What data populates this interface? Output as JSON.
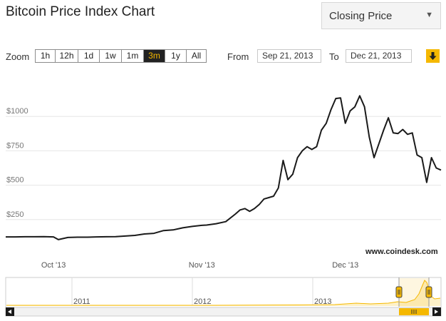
{
  "page": {
    "title": "Bitcoin Price Index Chart",
    "dropdown": {
      "selected": "Closing Price"
    },
    "zoom": {
      "label": "Zoom",
      "buttons": [
        "1h",
        "12h",
        "1d",
        "1w",
        "1m",
        "3m",
        "1y",
        "All"
      ],
      "active": "3m"
    },
    "range": {
      "from_label": "From",
      "from_value": "Sep 21, 2013",
      "to_label": "To",
      "to_value": "Dec 21, 2013"
    },
    "watermark": "www.coindesk.com"
  },
  "colors": {
    "accent": "#f5b800",
    "line": "#1a1a1a",
    "navigator_line": "#f5b800"
  },
  "chart_data": {
    "type": "line",
    "title": "",
    "xlabel": "",
    "ylabel": "",
    "y_ticks": [
      250,
      500,
      750,
      1000
    ],
    "y_tick_labels": [
      "$250",
      "$500",
      "$750",
      "$1000"
    ],
    "ylim": [
      0,
      1250
    ],
    "xlim": [
      "2013-09-21",
      "2013-12-21"
    ],
    "x_ticks": [
      {
        "date": "2013-10-01",
        "label": "Oct '13"
      },
      {
        "date": "2013-11-01",
        "label": "Nov '13"
      },
      {
        "date": "2013-12-01",
        "label": "Dec '13"
      }
    ],
    "grid": "horizontal",
    "series": [
      {
        "points": [
          [
            "2013-09-21",
            124
          ],
          [
            "2013-09-23",
            124
          ],
          [
            "2013-09-25",
            125
          ],
          [
            "2013-09-27",
            125
          ],
          [
            "2013-09-29",
            126
          ],
          [
            "2013-10-01",
            124
          ],
          [
            "2013-10-02",
            104
          ],
          [
            "2013-10-04",
            120
          ],
          [
            "2013-10-06",
            122
          ],
          [
            "2013-10-08",
            122
          ],
          [
            "2013-10-10",
            124
          ],
          [
            "2013-10-12",
            125
          ],
          [
            "2013-10-14",
            126
          ],
          [
            "2013-10-16",
            130
          ],
          [
            "2013-10-18",
            135
          ],
          [
            "2013-10-20",
            145
          ],
          [
            "2013-10-22",
            150
          ],
          [
            "2013-10-24",
            170
          ],
          [
            "2013-10-26",
            175
          ],
          [
            "2013-10-28",
            190
          ],
          [
            "2013-10-30",
            200
          ],
          [
            "2013-11-01",
            208
          ],
          [
            "2013-11-02",
            210
          ],
          [
            "2013-11-04",
            220
          ],
          [
            "2013-11-06",
            235
          ],
          [
            "2013-11-08",
            290
          ],
          [
            "2013-11-09",
            320
          ],
          [
            "2013-11-10",
            330
          ],
          [
            "2013-11-11",
            310
          ],
          [
            "2013-11-12",
            330
          ],
          [
            "2013-11-13",
            360
          ],
          [
            "2013-11-14",
            400
          ],
          [
            "2013-11-15",
            410
          ],
          [
            "2013-11-16",
            420
          ],
          [
            "2013-11-17",
            480
          ],
          [
            "2013-11-18",
            680
          ],
          [
            "2013-11-19",
            540
          ],
          [
            "2013-11-20",
            580
          ],
          [
            "2013-11-21",
            700
          ],
          [
            "2013-11-22",
            750
          ],
          [
            "2013-11-23",
            780
          ],
          [
            "2013-11-24",
            760
          ],
          [
            "2013-11-25",
            780
          ],
          [
            "2013-11-26",
            900
          ],
          [
            "2013-11-27",
            950
          ],
          [
            "2013-11-28",
            1050
          ],
          [
            "2013-11-29",
            1130
          ],
          [
            "2013-11-30",
            1135
          ],
          [
            "2013-12-01",
            950
          ],
          [
            "2013-12-02",
            1040
          ],
          [
            "2013-12-03",
            1070
          ],
          [
            "2013-12-04",
            1150
          ],
          [
            "2013-12-05",
            1070
          ],
          [
            "2013-12-06",
            850
          ],
          [
            "2013-12-07",
            700
          ],
          [
            "2013-12-08",
            800
          ],
          [
            "2013-12-09",
            900
          ],
          [
            "2013-12-10",
            990
          ],
          [
            "2013-12-11",
            880
          ],
          [
            "2013-12-12",
            875
          ],
          [
            "2013-12-13",
            905
          ],
          [
            "2013-12-14",
            870
          ],
          [
            "2013-12-15",
            880
          ],
          [
            "2013-12-16",
            720
          ],
          [
            "2013-12-17",
            700
          ],
          [
            "2013-12-18",
            520
          ],
          [
            "2013-12-19",
            700
          ],
          [
            "2013-12-20",
            625
          ],
          [
            "2013-12-21",
            610
          ]
        ]
      }
    ]
  },
  "navigator": {
    "labels": [
      "2011",
      "2012",
      "2013"
    ]
  }
}
